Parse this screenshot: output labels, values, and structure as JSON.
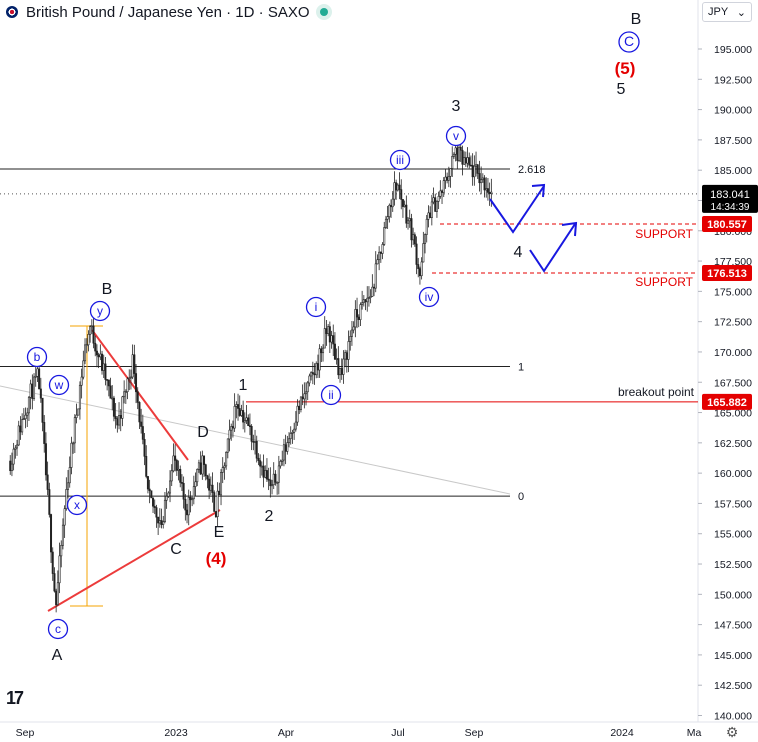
{
  "header": {
    "title": "British Pound / Japanese Yen · 1D · SAXO",
    "currency": "JPY",
    "currency_caret": "⌄"
  },
  "colors": {
    "up": "#222222",
    "blue_wave": "#1818e0",
    "red": "#e40000",
    "triangle_red": "#ec3b3b",
    "fib_orange": "#f5a300",
    "price_tag": "#000000"
  },
  "chart_data": {
    "type": "candlestick",
    "title": "British Pound / Japanese Yen · 1D · SAXO",
    "y_axis": {
      "min": 139.3,
      "max": 196.4,
      "ticks": [
        140.0,
        142.5,
        145.0,
        147.5,
        150.0,
        152.5,
        155.0,
        157.5,
        160.0,
        162.5,
        165.0,
        167.5,
        170.0,
        172.5,
        175.0,
        177.5,
        180.0,
        182.5,
        185.0,
        187.5,
        190.0,
        192.5,
        195.0
      ],
      "tick_labels": [
        "140.000",
        "142.500",
        "145.000",
        "147.500",
        "150.000",
        "152.500",
        "155.000",
        "157.500",
        "160.000",
        "162.500",
        "165.000",
        "167.500",
        "170.000",
        "172.500",
        "175.000",
        "177.500",
        "180.000",
        "182.500",
        "185.000",
        "187.500",
        "190.000",
        "192.500",
        "195.000"
      ]
    },
    "x_axis": {
      "tick_labels": [
        "Sep",
        "2023",
        "Apr",
        "Jul",
        "Sep",
        "2024",
        "Ma"
      ]
    },
    "price_path_anchors": [
      [
        "2022-08-20",
        161.0
      ],
      [
        "2022-09-05",
        166.5
      ],
      [
        "2022-09-12",
        168.0
      ],
      [
        "2022-09-26",
        149.0
      ],
      [
        "2022-10-05",
        159.0
      ],
      [
        "2022-10-20",
        170.5
      ],
      [
        "2022-10-24",
        172.1
      ],
      [
        "2022-11-05",
        168.0
      ],
      [
        "2022-11-15",
        164.0
      ],
      [
        "2022-11-28",
        169.5
      ],
      [
        "2022-12-10",
        158.0
      ],
      [
        "2022-12-22",
        155.8
      ],
      [
        "2022-12-30",
        161.5
      ],
      [
        "2023-01-10",
        157.0
      ],
      [
        "2023-01-23",
        161.0
      ],
      [
        "2023-02-03",
        157.0
      ],
      [
        "2023-02-20",
        166.0
      ],
      [
        "2023-03-05",
        163.0
      ],
      [
        "2023-03-20",
        158.5
      ],
      [
        "2023-04-10",
        165.0
      ],
      [
        "2023-04-25",
        168.5
      ],
      [
        "2023-05-05",
        172.0
      ],
      [
        "2023-05-16",
        168.0
      ],
      [
        "2023-05-26",
        172.5
      ],
      [
        "2023-06-10",
        175.0
      ],
      [
        "2023-06-24",
        182.0
      ],
      [
        "2023-06-30",
        184.0
      ],
      [
        "2023-07-06",
        182.0
      ],
      [
        "2023-07-12",
        180.0
      ],
      [
        "2023-07-19",
        176.5
      ],
      [
        "2023-07-26",
        181.5
      ],
      [
        "2023-08-05",
        183.0
      ],
      [
        "2023-08-17",
        186.5
      ],
      [
        "2023-08-25",
        185.5
      ],
      [
        "2023-09-05",
        184.5
      ],
      [
        "2023-09-15",
        183.2
      ]
    ],
    "horizontal_lines": [
      {
        "name": "fib-2.618",
        "y": 185.1,
        "label": "2.618"
      },
      {
        "name": "fib-1",
        "y": 168.8,
        "label": "1"
      },
      {
        "name": "fib-0",
        "y": 158.1,
        "label": "0"
      },
      {
        "name": "breakout",
        "y": 165.882,
        "label": "breakout point"
      },
      {
        "name": "support-1",
        "y": 180.557,
        "label": "SUPPORT"
      },
      {
        "name": "support-2",
        "y": 176.513,
        "label": "SUPPORT"
      }
    ],
    "price_tags": [
      {
        "value": "183.041",
        "sub": "14:34:39",
        "kind": "last"
      },
      {
        "value": "180.557",
        "kind": "support"
      },
      {
        "value": "176.513",
        "kind": "support"
      },
      {
        "value": "165.882",
        "kind": "breakout"
      }
    ],
    "wave_labels": {
      "black": [
        "B",
        "A",
        "C",
        "D",
        "E",
        "1",
        "2",
        "3",
        "4",
        "5",
        "B"
      ],
      "red": [
        "(4)",
        "(5)"
      ],
      "blue_circled": [
        "b",
        "y",
        "w",
        "x",
        "c",
        "i",
        "ii",
        "iii",
        "iv",
        "v",
        "C"
      ]
    }
  }
}
